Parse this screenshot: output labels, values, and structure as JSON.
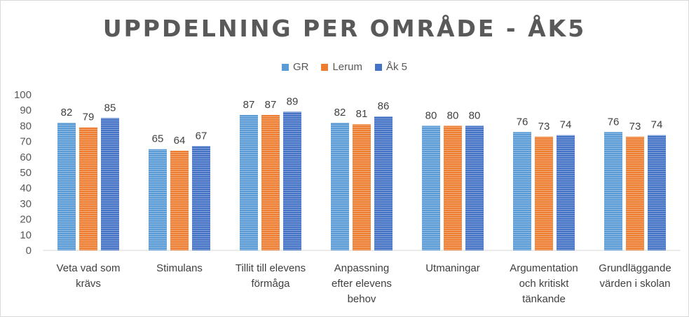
{
  "chart_data": {
    "type": "bar",
    "title": "UPPDELNING PER OMRÅDE - ÅK5",
    "categories": [
      [
        "Veta vad som",
        "krävs"
      ],
      [
        "Stimulans"
      ],
      [
        "Tillit till elevens",
        "förmåga"
      ],
      [
        "Anpassning",
        "efter elevens",
        "behov"
      ],
      [
        "Utmaningar"
      ],
      [
        "Argumentation",
        "och kritiskt",
        "tänkande"
      ],
      [
        "Grundläggande",
        "värden i skolan"
      ]
    ],
    "series": [
      {
        "name": "GR",
        "color": "#5b9bd5",
        "values": [
          82,
          65,
          87,
          82,
          80,
          76,
          76
        ]
      },
      {
        "name": "Lerum",
        "color": "#ed7d31",
        "values": [
          79,
          64,
          87,
          81,
          80,
          73,
          73
        ]
      },
      {
        "name": "Åk 5",
        "color": "#4472c4",
        "values": [
          85,
          67,
          89,
          86,
          80,
          74,
          74
        ]
      }
    ],
    "ylim": [
      0,
      100
    ],
    "yticks": [
      0,
      10,
      20,
      30,
      40,
      50,
      60,
      70,
      80,
      90,
      100
    ],
    "xlabel": "",
    "ylabel": "",
    "grid": false,
    "legend_position": "top"
  }
}
